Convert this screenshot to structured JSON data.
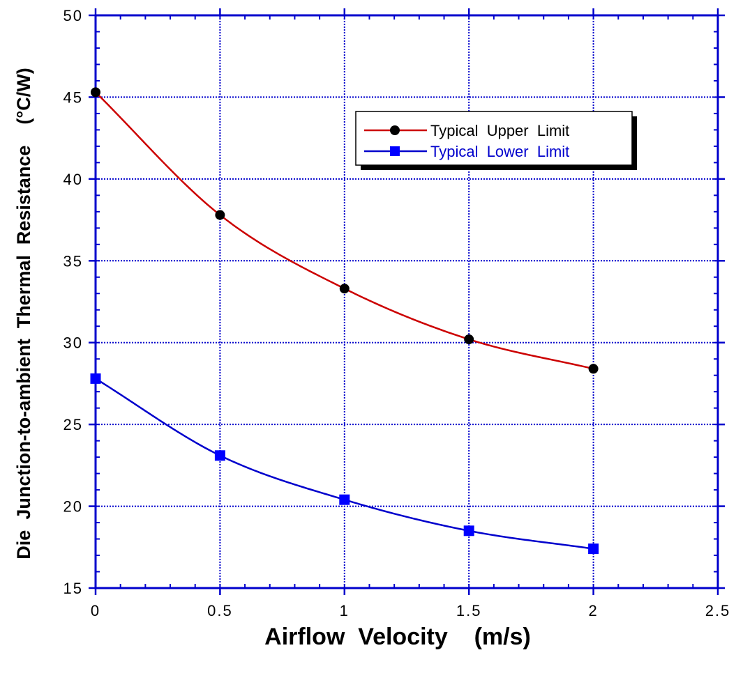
{
  "chart_data": {
    "type": "line",
    "title": "",
    "xlabel": "Airflow  Velocity    (m/s)",
    "ylabel": "Die  Junction-to-ambient  Thermal  Resistance    (°C/W)",
    "xlim": [
      0,
      2.5
    ],
    "ylim": [
      15,
      50
    ],
    "xticks": [
      0,
      0.5,
      1,
      1.5,
      2,
      2.5
    ],
    "xtick_labels": [
      "0",
      "0.5",
      "1",
      "1.5",
      "2",
      "2.5"
    ],
    "yticks": [
      15,
      20,
      25,
      30,
      35,
      40,
      45,
      50
    ],
    "ytick_labels": [
      "15",
      "20",
      "25",
      "30",
      "35",
      "40",
      "45",
      "50"
    ],
    "grid": true,
    "legend_position": "top-right",
    "x": [
      0,
      0.5,
      1,
      1.5,
      2
    ],
    "series": [
      {
        "name": "Typical  Upper  Limit",
        "values": [
          45.3,
          37.8,
          33.3,
          30.2,
          28.4
        ],
        "color": "#cc0000",
        "marker": "circle",
        "marker_color": "#000000",
        "text_color": "#000000"
      },
      {
        "name": "Typical  Lower  Limit",
        "values": [
          27.8,
          23.1,
          20.4,
          18.5,
          17.4
        ],
        "color": "#0000cc",
        "marker": "square",
        "marker_color": "#0000ff",
        "text_color": "#0000cc"
      }
    ]
  }
}
